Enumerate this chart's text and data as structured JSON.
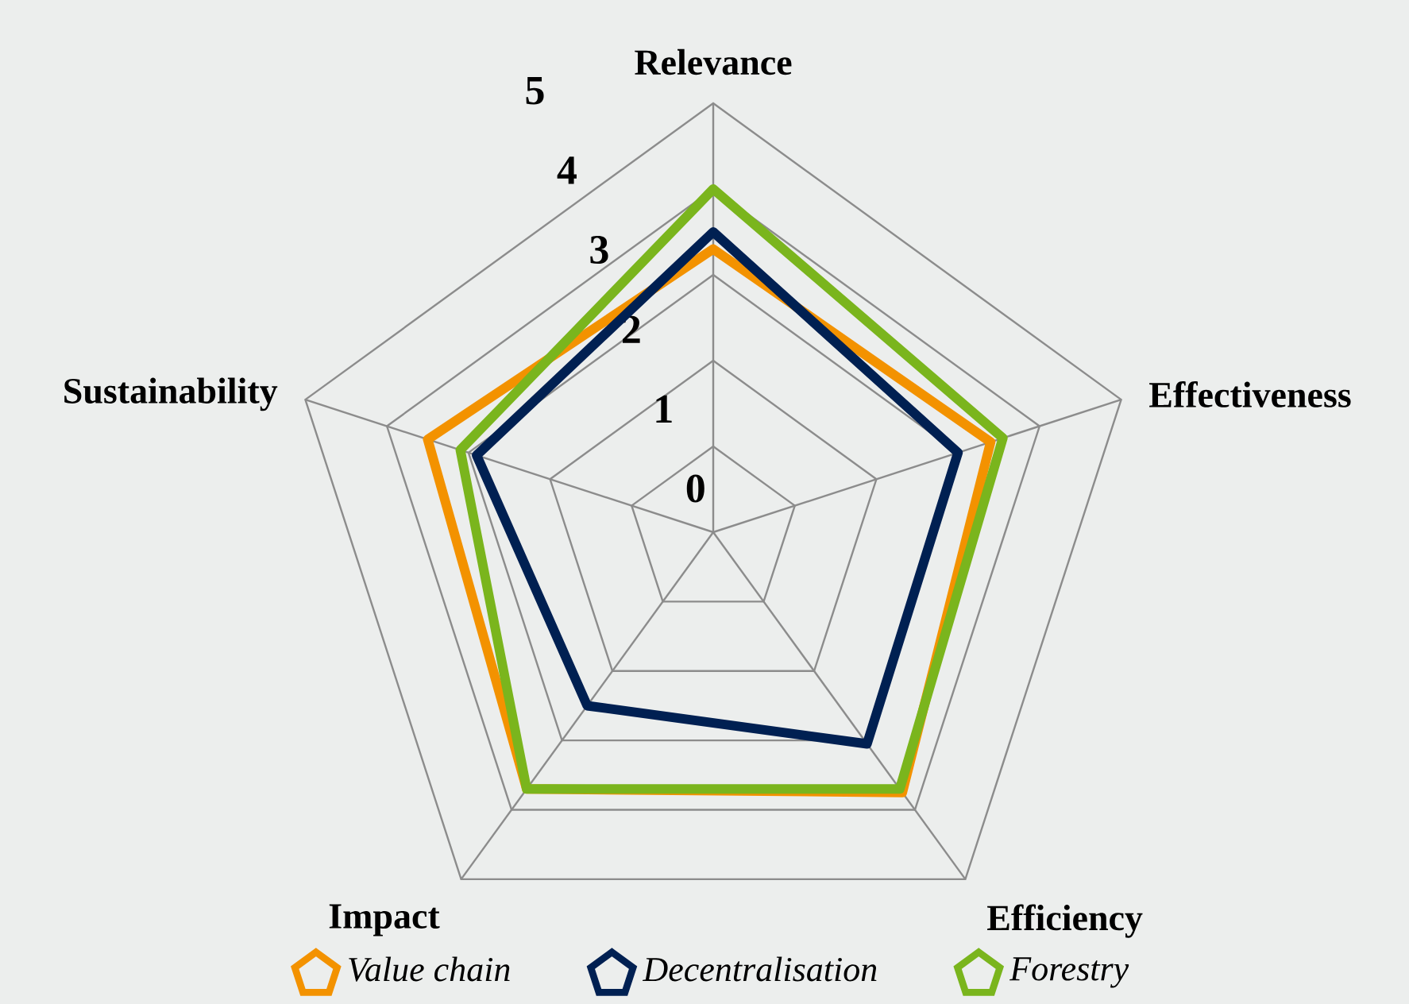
{
  "chart_data": {
    "type": "radar",
    "categories": [
      "Relevance",
      "Effectiveness",
      "Efficiency",
      "Impact",
      "Sustainability"
    ],
    "series": [
      {
        "name": "Value chain",
        "color": "#f39200",
        "values": [
          3.3,
          3.4,
          3.75,
          3.7,
          3.5
        ]
      },
      {
        "name": "Decentralisation",
        "color": "#002052",
        "values": [
          3.5,
          3.0,
          3.05,
          2.5,
          2.9
        ]
      },
      {
        "name": "Forestry",
        "color": "#7ab51d",
        "values": [
          4.0,
          3.55,
          3.7,
          3.7,
          3.1
        ]
      }
    ],
    "ylim": [
      0,
      5
    ],
    "yticks": [
      0,
      1,
      2,
      3,
      4,
      5
    ],
    "grid": true,
    "legend": "bottom"
  }
}
